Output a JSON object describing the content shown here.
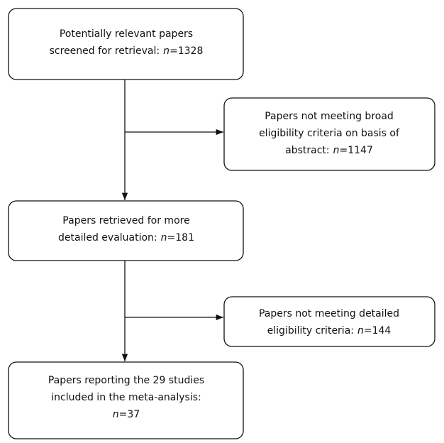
{
  "nodes": [
    {
      "lines": [
        "Potentially relevant papers",
        "screened for retrieval:"
      ],
      "count": {
        "label": "n",
        "sign": "=",
        "value": 1328
      }
    },
    {
      "lines": [
        "Papers not meeting broad",
        "eligibility criteria on basis of",
        "abstract:"
      ],
      "count": {
        "label": "n",
        "sign": "=",
        "value": 1147
      }
    },
    {
      "lines": [
        "Papers retrieved for more",
        "detailed evaluation:"
      ],
      "count": {
        "label": "n",
        "sign": "=",
        "value": 181
      }
    },
    {
      "lines": [
        "Papers not meeting detailed",
        "eligibility criteria:"
      ],
      "count": {
        "label": "n",
        "sign": "=",
        "value": 144
      }
    },
    {
      "lines": [
        "Papers reporting the 29 studies",
        "included in the meta-analysis:"
      ],
      "count": {
        "label": "n",
        "sign": "=",
        "value": 37
      }
    }
  ]
}
